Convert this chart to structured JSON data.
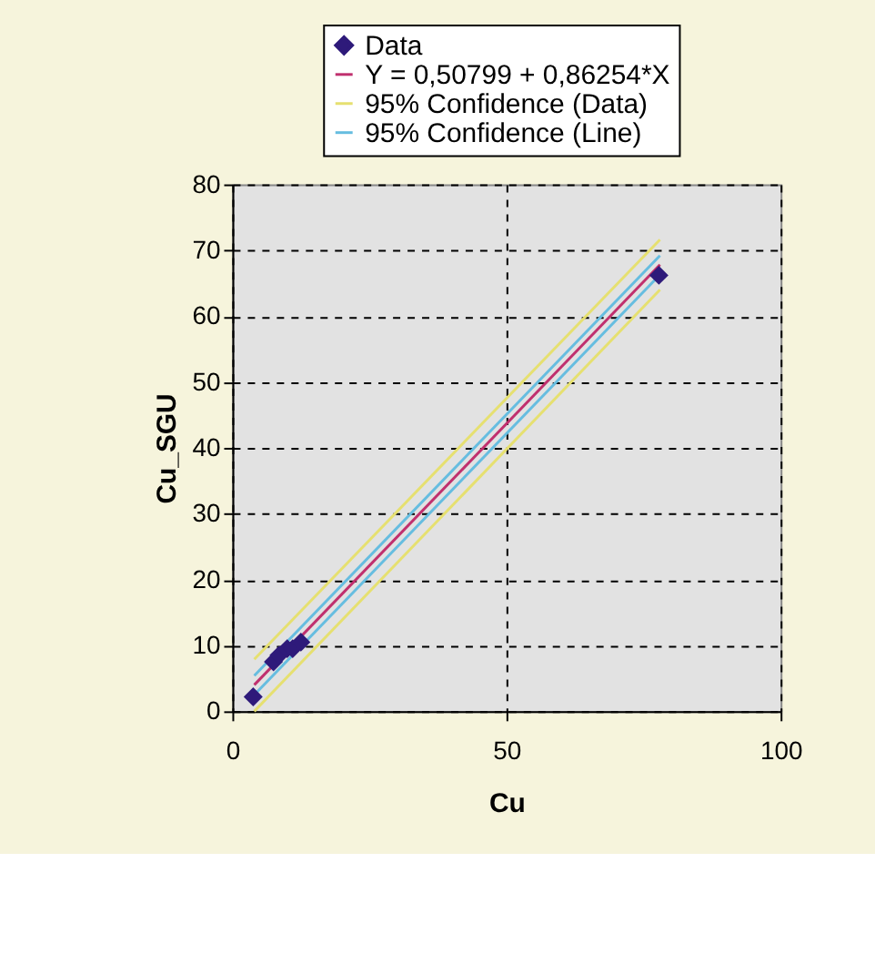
{
  "chart_data": {
    "type": "scatter",
    "xlabel": "Cu",
    "ylabel": "Cu_SGU",
    "xlim": [
      0,
      100
    ],
    "xticks": [
      0,
      50,
      100
    ],
    "ylim": [
      0,
      80
    ],
    "yticks": [
      0,
      10,
      20,
      30,
      40,
      50,
      60,
      70,
      80
    ],
    "grid": true,
    "legend": "top",
    "line_style": "solid",
    "series": [
      {
        "name": "Data",
        "marker": "diamond",
        "color": "#2e1a7a",
        "x": [
          3.8,
          7.5,
          8.5,
          10,
          11,
          12.5,
          77.8
        ],
        "values": [
          2.2,
          7.5,
          8.5,
          9.5,
          9.5,
          10.5,
          66.2
        ]
      },
      {
        "name": "Y = 0,50799 + 0,86254*X",
        "type": "line",
        "marker": "none",
        "color": "#c0306e",
        "x": [
          4,
          78
        ],
        "values": [
          4.0,
          67.8
        ]
      },
      {
        "name": "95% Confidence (Data)",
        "type": "line",
        "marker": "none",
        "color": "#e6e070",
        "x": [
          4,
          78
        ],
        "values": [
          7.9,
          71.6
        ]
      },
      {
        "type": "line",
        "marker": "none",
        "color": "#e6e070",
        "x": [
          4,
          78
        ],
        "values": [
          0,
          64
        ]
      },
      {
        "name": "95% Confidence (Line)",
        "type": "line",
        "marker": "none",
        "color": "#66bde0",
        "x": [
          4,
          78
        ],
        "values": [
          5.4,
          69.2
        ]
      },
      {
        "type": "line",
        "marker": "none",
        "color": "#66bde0",
        "x": [
          4,
          78
        ],
        "values": [
          2.5,
          66.3
        ]
      }
    ]
  }
}
